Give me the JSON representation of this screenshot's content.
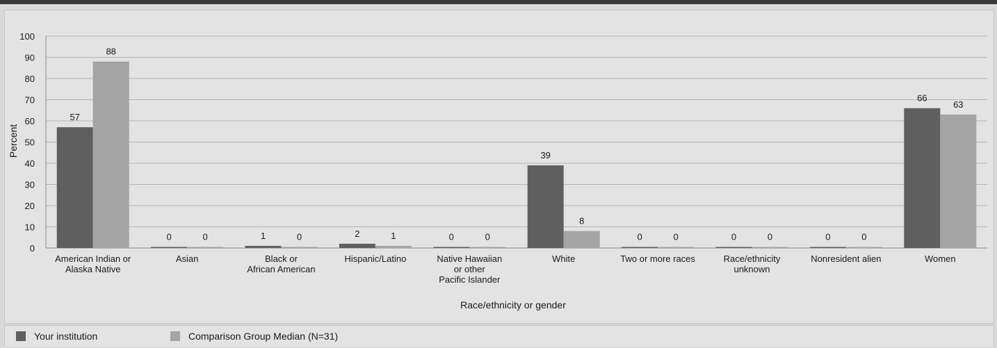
{
  "colors": {
    "your_institution": "#5f5f5f",
    "comparison": "#a4a4a4",
    "grid": "#b3b3b3"
  },
  "chart_data": {
    "type": "bar",
    "ylabel": "Percent",
    "xlabel": "Race/ethnicity or gender",
    "ylim": [
      0,
      100
    ],
    "yticks": [
      0,
      10,
      20,
      30,
      40,
      50,
      60,
      70,
      80,
      90,
      100
    ],
    "grid": true,
    "legend_position": "bottom",
    "categories": [
      [
        "American Indian or",
        "Alaska Native"
      ],
      [
        "Asian"
      ],
      [
        "Black or",
        "African American"
      ],
      [
        "Hispanic/Latino"
      ],
      [
        "Native Hawaiian",
        "or other",
        "Pacific Islander"
      ],
      [
        "White"
      ],
      [
        "Two or more races"
      ],
      [
        "Race/ethnicity",
        "unknown"
      ],
      [
        "Nonresident alien"
      ],
      [
        "Women"
      ]
    ],
    "series": [
      {
        "name": "Your institution",
        "values": [
          57,
          0,
          1,
          2,
          0,
          39,
          0,
          0,
          0,
          66
        ]
      },
      {
        "name": "Comparison Group Median (N=31)",
        "values": [
          88,
          0,
          0,
          1,
          0,
          8,
          0,
          0,
          0,
          63
        ]
      }
    ]
  }
}
